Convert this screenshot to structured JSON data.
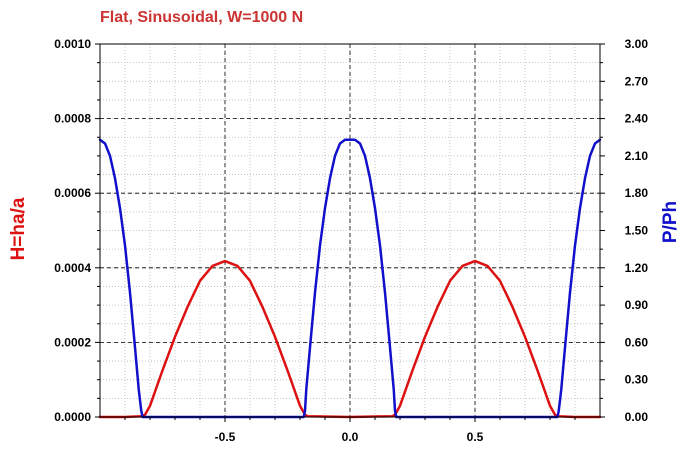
{
  "chart_data": {
    "type": "line",
    "title": "Flat, Sinusoidal, W=1000 N",
    "xlabel": "",
    "ylabel": "H=ha/a",
    "y2label": "P/Ph",
    "xlim": [
      -1.0,
      1.0
    ],
    "ylim": [
      0,
      0.001
    ],
    "y2lim": [
      0,
      3.0
    ],
    "xticks": [
      -0.5,
      0.0,
      0.5
    ],
    "xtick_labels": [
      "-0.5",
      "0.0",
      "0.5"
    ],
    "yticks": [
      0,
      0.0002,
      0.0004,
      0.0006,
      0.0008,
      0.001
    ],
    "ytick_labels": [
      "0.0000",
      "0.0002",
      "0.0004",
      "0.0006",
      "0.0008",
      "0.0010"
    ],
    "y2ticks": [
      0,
      0.3,
      0.6,
      0.9,
      1.2,
      1.5,
      1.8,
      2.1,
      2.4,
      2.7,
      3.0
    ],
    "y2tick_labels": [
      "0.00",
      "0.30",
      "0.60",
      "0.90",
      "1.20",
      "1.50",
      "1.80",
      "2.10",
      "2.40",
      "2.70",
      "3.00"
    ],
    "grid": true,
    "colors": {
      "H": "#dd1111",
      "P": "#1111cc",
      "title": "#cc3333",
      "grid": "#000000"
    },
    "series": [
      {
        "axis": "left",
        "color": "#dd1111",
        "x": [
          -1.0,
          -0.9,
          -0.83,
          -0.82,
          -0.8,
          -0.75,
          -0.7,
          -0.65,
          -0.6,
          -0.55,
          -0.5,
          -0.45,
          -0.4,
          -0.35,
          -0.3,
          -0.25,
          -0.2,
          -0.18,
          -0.17,
          0.0,
          0.17,
          0.18,
          0.2,
          0.25,
          0.3,
          0.35,
          0.4,
          0.45,
          0.5,
          0.55,
          0.6,
          0.65,
          0.7,
          0.75,
          0.8,
          0.82,
          0.83,
          0.9,
          1.0
        ],
        "values": [
          0.0,
          0.0,
          2e-06,
          6e-06,
          3e-05,
          0.000125,
          0.000215,
          0.000295,
          0.000365,
          0.000405,
          0.000418,
          0.000405,
          0.000365,
          0.000295,
          0.000215,
          0.000125,
          3e-05,
          6e-06,
          2e-06,
          0.0,
          2e-06,
          6e-06,
          3e-05,
          0.000125,
          0.000215,
          0.000295,
          0.000365,
          0.000405,
          0.000418,
          0.000405,
          0.000365,
          0.000295,
          0.000215,
          0.000125,
          3e-05,
          6e-06,
          2e-06,
          0.0,
          0.0
        ]
      },
      {
        "axis": "right",
        "color": "#1111cc",
        "x": [
          -1.0,
          -0.98,
          -0.96,
          -0.94,
          -0.92,
          -0.9,
          -0.88,
          -0.86,
          -0.845,
          -0.835,
          -0.83,
          -0.82,
          -0.2,
          -0.185,
          -0.18,
          -0.175,
          -0.16,
          -0.14,
          -0.12,
          -0.1,
          -0.08,
          -0.06,
          -0.04,
          -0.02,
          0.0,
          0.02,
          0.04,
          0.06,
          0.08,
          0.1,
          0.12,
          0.14,
          0.16,
          0.175,
          0.18,
          0.185,
          0.2,
          0.82,
          0.83,
          0.835,
          0.845,
          0.86,
          0.88,
          0.9,
          0.92,
          0.94,
          0.96,
          0.98,
          1.0
        ],
        "values": [
          2.23,
          2.2,
          2.1,
          1.92,
          1.68,
          1.38,
          1.0,
          0.56,
          0.22,
          0.05,
          0.0,
          0.0,
          0.0,
          0.0,
          0.05,
          0.22,
          0.56,
          1.0,
          1.38,
          1.68,
          1.92,
          2.1,
          2.2,
          2.23,
          2.23,
          2.23,
          2.2,
          2.1,
          1.92,
          1.68,
          1.38,
          1.0,
          0.56,
          0.22,
          0.05,
          0.0,
          0.0,
          0.0,
          0.0,
          0.05,
          0.22,
          0.56,
          1.0,
          1.38,
          1.68,
          1.92,
          2.1,
          2.2,
          2.23
        ]
      }
    ]
  }
}
